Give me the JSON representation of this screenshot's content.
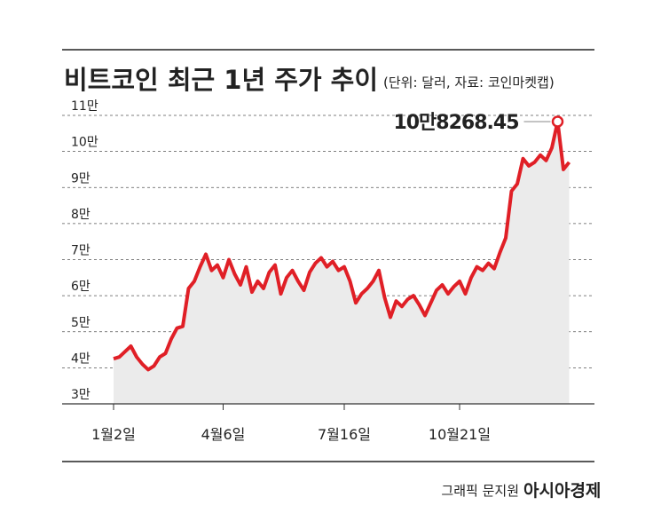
{
  "chart_data": {
    "type": "line",
    "title": "비트코인 최근 1년 주가 추이",
    "subtitle": "(단위: 달러, 자료: 코인마켓캡)",
    "credit": "그래픽 문지원",
    "brand": "아시아경제",
    "peak_label": "10만8268.45",
    "categories": [
      "1월2일",
      null,
      null,
      null,
      null,
      null,
      null,
      null,
      null,
      null,
      null,
      null,
      null,
      null,
      null,
      null,
      null,
      null,
      null,
      "4월6일",
      null,
      null,
      null,
      null,
      null,
      null,
      null,
      null,
      null,
      null,
      null,
      null,
      null,
      null,
      null,
      null,
      null,
      null,
      null,
      null,
      "7월16일",
      null,
      null,
      null,
      null,
      null,
      null,
      null,
      null,
      null,
      null,
      null,
      null,
      null,
      null,
      null,
      null,
      null,
      null,
      null,
      "10월21일",
      null,
      null,
      null,
      null,
      null,
      null,
      null,
      null,
      null,
      null,
      null,
      null,
      null,
      null,
      null,
      null,
      null,
      null,
      null
    ],
    "series": [
      {
        "color": "#e01f26",
        "values": [
          42500,
          43000,
          44500,
          46000,
          43000,
          41000,
          39500,
          40500,
          43000,
          44000,
          48000,
          51000,
          51500,
          62000,
          64000,
          68000,
          71500,
          67000,
          68500,
          65000,
          70000,
          66000,
          63000,
          68000,
          61000,
          64000,
          62000,
          66500,
          68500,
          60500,
          65000,
          67000,
          64000,
          61500,
          66500,
          69000,
          70500,
          68000,
          69500,
          67000,
          68000,
          64000,
          58000,
          60500,
          62000,
          64000,
          67000,
          59500,
          54000,
          58500,
          57000,
          59000,
          60000,
          57500,
          54500,
          58000,
          61500,
          63000,
          60500,
          62500,
          64000,
          60500,
          65000,
          68000,
          67000,
          69000,
          67500,
          72000,
          76000,
          89000,
          91000,
          98000,
          96000,
          97000,
          99000,
          97500,
          101000,
          108268.45,
          95000,
          97000
        ]
      }
    ],
    "peak_index": 77,
    "area_color": "#ebebeb",
    "ylim": [
      30000,
      110000
    ],
    "yticks": [
      {
        "value": 30000,
        "label": "3만"
      },
      {
        "value": 40000,
        "label": "4만"
      },
      {
        "value": 50000,
        "label": "5만"
      },
      {
        "value": 60000,
        "label": "6만"
      },
      {
        "value": 70000,
        "label": "7만"
      },
      {
        "value": 80000,
        "label": "8만"
      },
      {
        "value": 90000,
        "label": "9만"
      },
      {
        "value": 100000,
        "label": "10만"
      },
      {
        "value": 110000,
        "label": "11만"
      }
    ],
    "grid": true
  }
}
